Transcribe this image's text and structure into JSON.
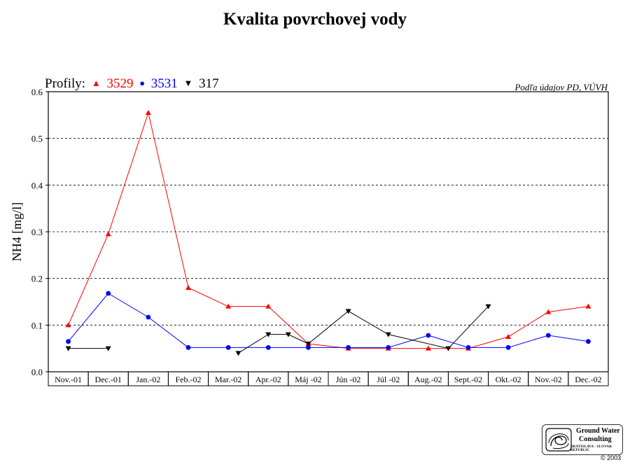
{
  "title": "Kvalita povrchovej vody",
  "legend": {
    "prefix": "Profily:",
    "items": [
      {
        "symbol": "▲",
        "label": "3529",
        "color": "#ff0000"
      },
      {
        "symbol": "●",
        "label": "3531",
        "color": "#0000ff"
      },
      {
        "symbol": "▼",
        "label": "317",
        "color": "#000000"
      }
    ]
  },
  "source_note": "Podľa údajov PD, VÚVH",
  "logo": {
    "line1": "Ground Water",
    "line2": "Consulting",
    "sub": "BRATISLAVA · SLOVAK REPUBLIC"
  },
  "copyright": "© 2003",
  "chart_data": {
    "type": "line",
    "title": "Kvalita povrchovej vody",
    "xlabel": "",
    "ylabel": "NH4 [mg/l]",
    "ylim": [
      0,
      0.6
    ],
    "yticks": [
      "0.0",
      "0.1",
      "0.2",
      "0.3",
      "0.4",
      "0.5",
      "0.6"
    ],
    "grid": true,
    "legend_position": "top-left",
    "categories": [
      "Nov.-01",
      "Dec.-01",
      "Jan.-02",
      "Feb.-02",
      "Mar.-02",
      "Apr.-02",
      "Máj -02",
      "Jún -02",
      "Júl -02",
      "Aug.-02",
      "Sept.-02",
      "Okt.-02",
      "Nov.-02",
      "Dec.-02"
    ],
    "series": [
      {
        "name": "3529",
        "color": "#ff0000",
        "marker": "triangle-up",
        "points": [
          [
            0,
            0.1
          ],
          [
            1,
            0.295
          ],
          [
            2,
            0.555
          ],
          [
            3,
            0.18
          ],
          [
            4,
            0.14
          ],
          [
            5,
            0.14
          ],
          [
            6,
            0.06
          ],
          [
            7,
            0.05
          ],
          [
            8,
            0.05
          ],
          [
            9,
            0.05
          ],
          [
            10,
            0.05
          ],
          [
            11,
            0.075
          ],
          [
            12,
            0.128
          ],
          [
            13,
            0.14
          ]
        ]
      },
      {
        "name": "3531",
        "color": "#0000ff",
        "marker": "circle",
        "points": [
          [
            0,
            0.065
          ],
          [
            1,
            0.168
          ],
          [
            2,
            0.117
          ],
          [
            3,
            0.052
          ],
          [
            4,
            0.052
          ],
          [
            5,
            0.052
          ],
          [
            6,
            0.052
          ],
          [
            7,
            0.052
          ],
          [
            8,
            0.052
          ],
          [
            9,
            0.078
          ],
          [
            10,
            0.052
          ],
          [
            11,
            0.052
          ],
          [
            12,
            0.078
          ],
          [
            13,
            0.065
          ]
        ]
      },
      {
        "name": "317",
        "color": "#000000",
        "marker": "triangle-down",
        "segments": [
          [
            [
              0,
              0.05
            ],
            [
              1,
              0.05
            ]
          ],
          [
            [
              4.25,
              0.04
            ],
            [
              5,
              0.08
            ],
            [
              5.5,
              0.08
            ],
            [
              6,
              0.06
            ],
            [
              7,
              0.13
            ],
            [
              8,
              0.08
            ],
            [
              9.5,
              0.05
            ],
            [
              10.5,
              0.14
            ]
          ]
        ]
      }
    ]
  }
}
